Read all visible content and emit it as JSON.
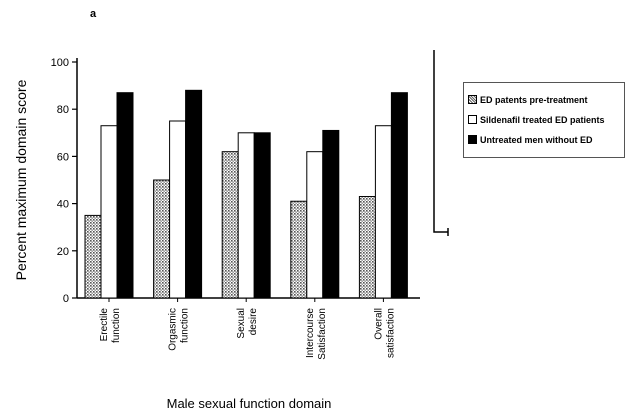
{
  "panel_label": "a",
  "chart_data": {
    "type": "bar",
    "categories": [
      [
        "Erectile",
        "function"
      ],
      [
        "Orgasmic",
        "function"
      ],
      [
        "Sexual",
        "desire"
      ],
      [
        "Intercourse",
        "Satisfaction"
      ],
      [
        "Overall",
        "satisfaction"
      ]
    ],
    "series": [
      {
        "name": "ED patents pre-treatment",
        "values": [
          35,
          50,
          62,
          41,
          43
        ],
        "fill": "dotted"
      },
      {
        "name": "Sildenafil treated ED patients",
        "values": [
          73,
          75,
          70,
          62,
          73
        ],
        "fill": "#ffffff"
      },
      {
        "name": "Untreated men without ED",
        "values": [
          87,
          88,
          70,
          71,
          87
        ],
        "fill": "#000000"
      }
    ],
    "xlabel": "Male sexual function domain",
    "ylabel": "Percent maximum domain score",
    "ylim": [
      0,
      100
    ],
    "yticks": [
      0,
      20,
      40,
      60,
      80,
      100
    ],
    "grid": false,
    "legend_position": "right"
  }
}
